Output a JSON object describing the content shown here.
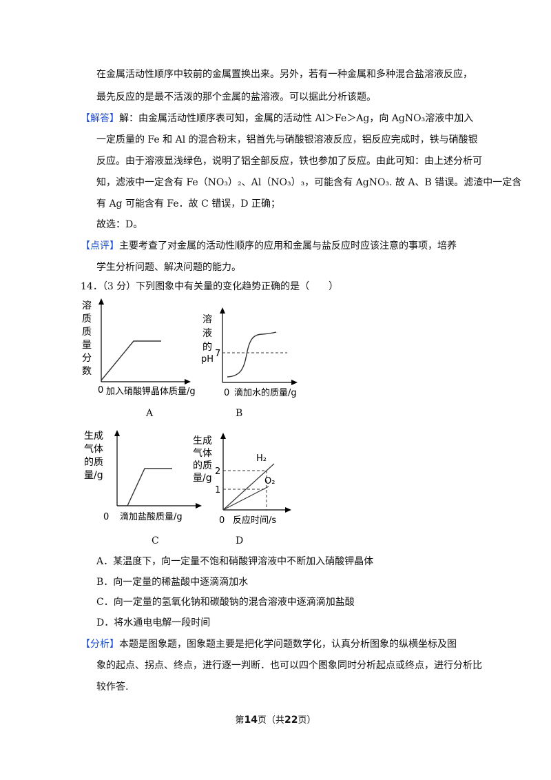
{
  "prev": {
    "line1": "在金属活动性顺序中较前的金属置换出来。另外，若有一种金属和多种混合盐溶液反应，",
    "line2": "最先反应的是最不活泼的那个金属的盐溶液。可以据此分析该题。",
    "answer_tag": "【解答】",
    "answer_l1": "解：由金属活动性顺序表可知，金属的活动性 Al＞Fe＞Ag，向 AgNO₃溶液中加入",
    "answer_l2": "一定质量的 Fe 和 Al 的混合粉末，铝首先与硝酸银溶液反应，铝反应完成时，铁与硝酸银",
    "answer_l3": "反应。由于溶液显浅绿色，说明了铝全部反应，铁也参加了反应。由此可知：由上述分析可",
    "answer_l4": "知，滤液中一定含有 Fe（NO₃）₂、Al（NO₃）₃，可能含有 AgNO₃. 故 A、B 错误。滤渣中一定含",
    "answer_l5": "有 Ag 可能含有 Fe．故 C 错误，D 正确；",
    "answer_l6": "故选：D。",
    "comment_tag": "【点评】",
    "comment_l1": "主要考查了对金属的活动性顺序的应用和金属与盐反应时应该注意的事项，培养",
    "comment_l2": "学生分析问题、解决问题的能力。"
  },
  "question": {
    "stem": "14．（3 分）下列图象中有关量的变化趋势正确的是（　　）",
    "graph_a": {
      "ylabel": [
        "溶",
        "质",
        "质",
        "量",
        "分",
        "数"
      ],
      "origin": "0",
      "xlabel": "加入硝酸钾晶体质量/g",
      "caption": "A"
    },
    "graph_b": {
      "ylabel": [
        "溶",
        "液",
        "的"
      ],
      "ylabel_ph": "pH",
      "tick7": "7",
      "origin": "0",
      "xlabel": "滴加水的质量/g",
      "caption": "B"
    },
    "graph_c": {
      "ylabel": [
        "生成",
        "气体",
        "的质",
        "量/g"
      ],
      "origin": "0",
      "xlabel": "滴加盐酸质量/g",
      "caption": "C"
    },
    "graph_d": {
      "ylabel": [
        "生成",
        "气体",
        "的质",
        "量/g"
      ],
      "tick2": "2",
      "tick1": "1",
      "origin": "0",
      "xlabel": "反应时间/s",
      "h2": "H₂",
      "o2": "O₂",
      "caption": "D"
    },
    "options": [
      "A．某温度下，向一定量不饱和硝酸钾溶液中不断加入硝酸钾晶体",
      "B．向一定量的稀盐酸中逐滴滴加水",
      "C．向一定量的氢氧化钠和碳酸钠的混合溶液中逐滴滴加盐酸",
      "D．将水通电电解一段时间"
    ]
  },
  "analysis": {
    "tag": "【分析】",
    "l1": "本题是图象题，图象题主要是把化学问题数学化，认真分析图象的纵横坐标及图",
    "l2": "象的起点、拐点、终点，进行逐一判断．也可以四个图象同时分析起点或终点，进行分析比",
    "l3": "较作答."
  },
  "footer": {
    "prefix": "第",
    "page": "14",
    "mid": "页（共",
    "total": "22",
    "suffix": "页）"
  },
  "colors": {
    "tag": "#1f4fcc",
    "text": "#111111"
  }
}
